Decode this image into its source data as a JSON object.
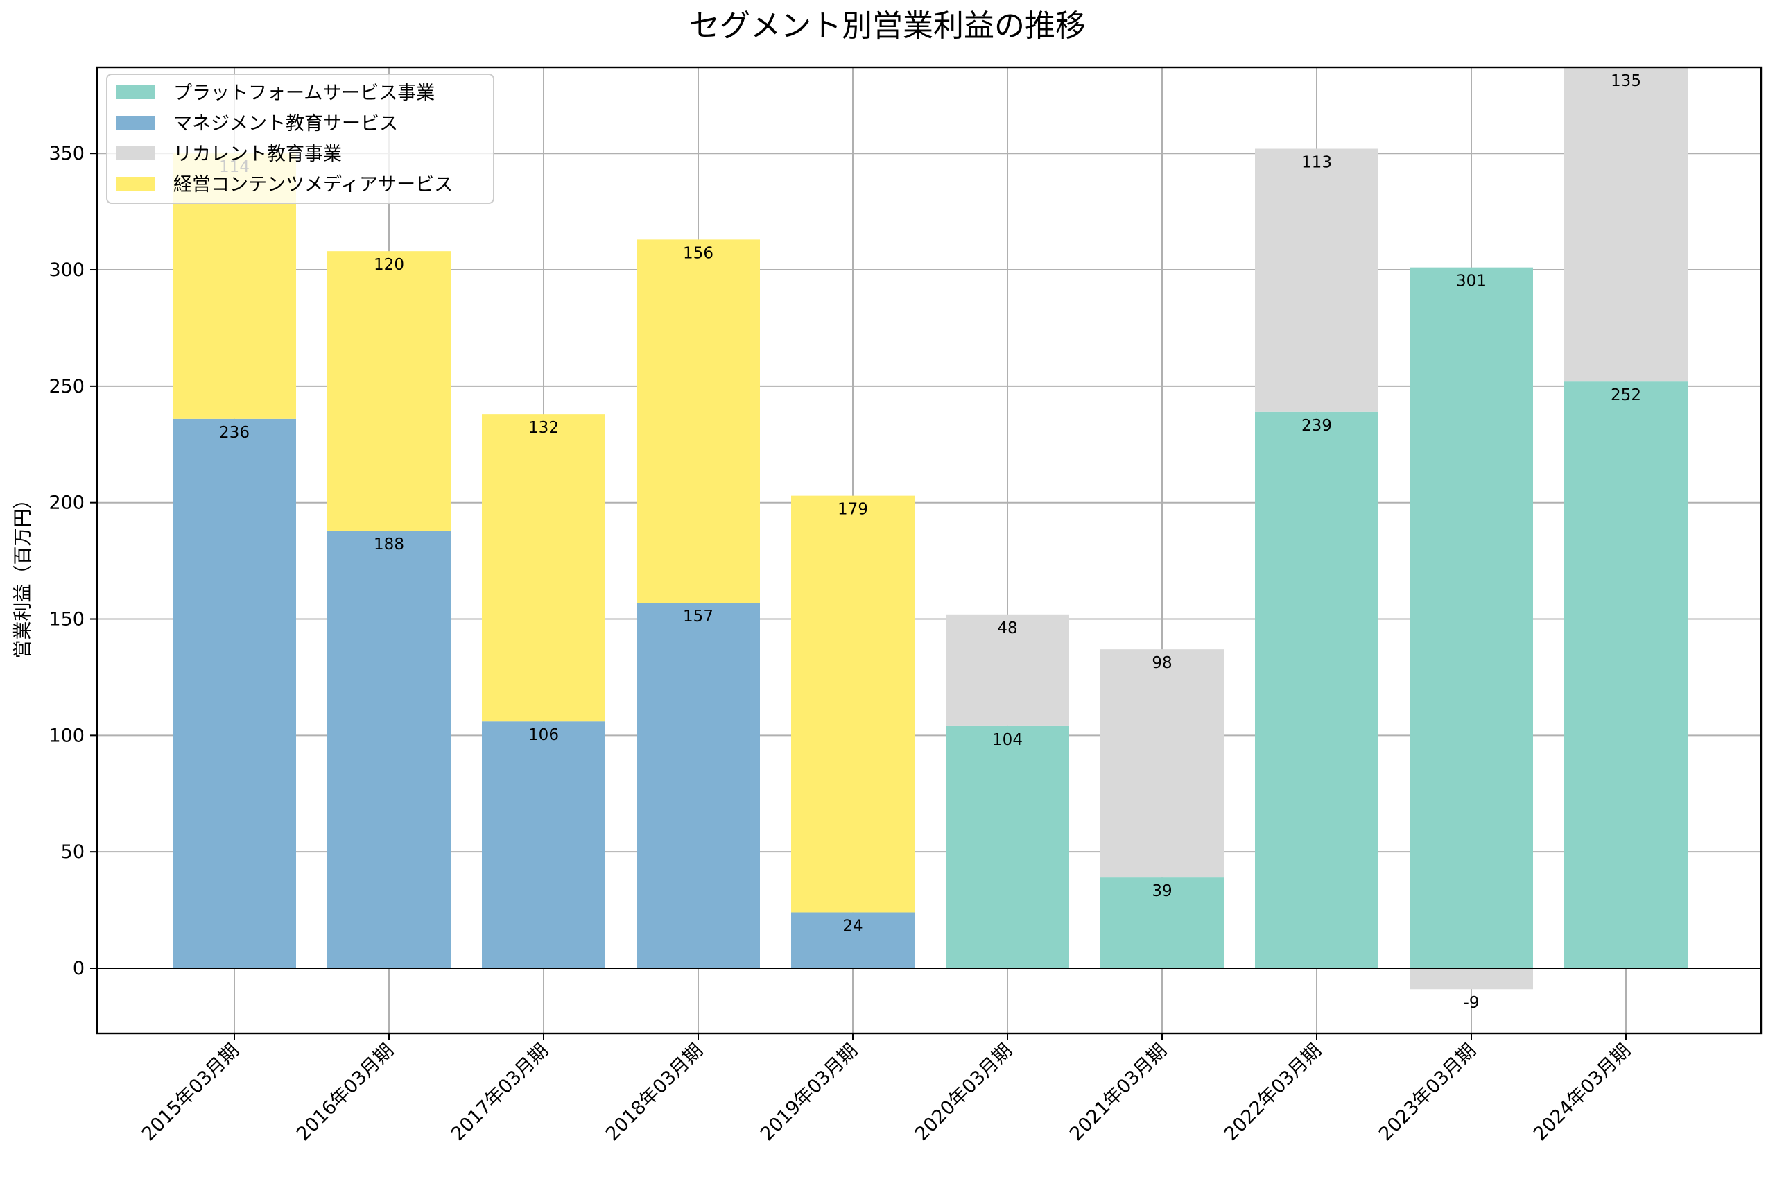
{
  "chart_data": {
    "type": "bar",
    "stacked": true,
    "title": "セグメント別営業利益の推移",
    "xlabel": "",
    "ylabel": "営業利益（百万円）",
    "ylim": [
      -28,
      387
    ],
    "yticks": [
      0,
      50,
      100,
      150,
      200,
      250,
      300,
      350
    ],
    "grid": true,
    "legend_position": "top-left",
    "categories": [
      "2015年03月期",
      "2016年03月期",
      "2017年03月期",
      "2018年03月期",
      "2019年03月期",
      "2020年03月期",
      "2021年03月期",
      "2022年03月期",
      "2023年03月期",
      "2024年03月期"
    ],
    "series": [
      {
        "name": "プラットフォームサービス事業",
        "color": "#8dd3c7",
        "values": [
          null,
          null,
          null,
          null,
          null,
          104,
          39,
          239,
          301,
          252
        ]
      },
      {
        "name": "マネジメント教育サービス",
        "color": "#80b1d3",
        "values": [
          236,
          188,
          106,
          157,
          24,
          null,
          null,
          null,
          null,
          null
        ]
      },
      {
        "name": "リカレント教育事業",
        "color": "#d9d9d9",
        "values": [
          null,
          null,
          null,
          null,
          null,
          48,
          98,
          113,
          -9,
          135
        ]
      },
      {
        "name": "経営コンテンツメディアサービス",
        "color": "#ffed6f",
        "values": [
          114,
          120,
          132,
          156,
          179,
          null,
          null,
          null,
          null,
          null
        ]
      }
    ]
  }
}
